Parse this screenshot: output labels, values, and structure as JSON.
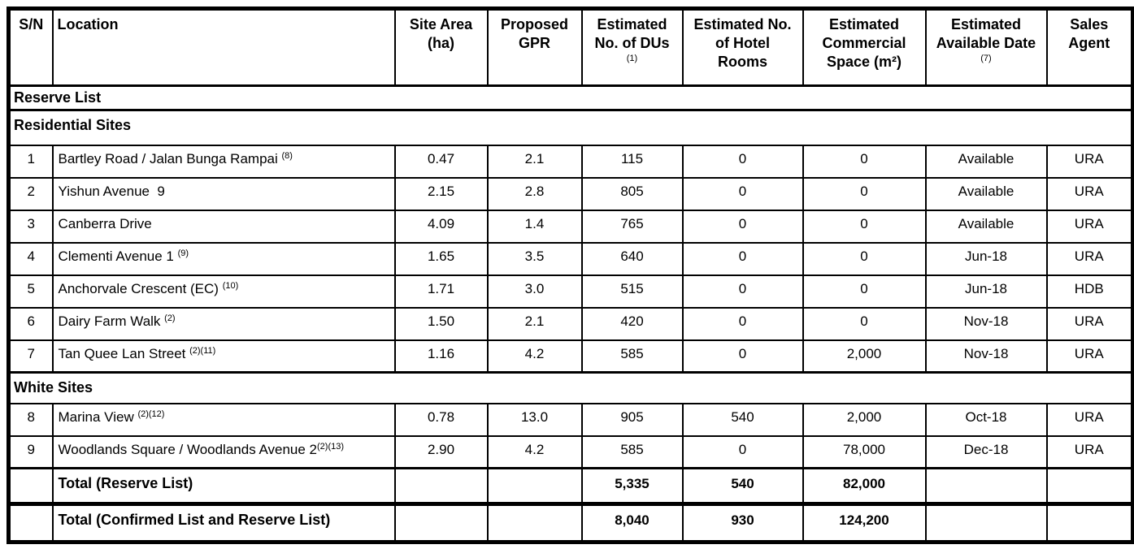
{
  "header": {
    "columns": [
      {
        "id": "sn",
        "label": "S/N",
        "note": ""
      },
      {
        "id": "location",
        "label": "Location",
        "note": ""
      },
      {
        "id": "site-area",
        "label": "Site Area\n(ha)",
        "note": ""
      },
      {
        "id": "gpr",
        "label": "Proposed\nGPR",
        "note": ""
      },
      {
        "id": "dus",
        "label": "Estimated\nNo. of DUs",
        "note": "(1)"
      },
      {
        "id": "hotel-rooms",
        "label": "Estimated No.\nof Hotel\nRooms",
        "note": ""
      },
      {
        "id": "commercial",
        "label": "Estimated\nCommercial\nSpace (m²)",
        "note": ""
      },
      {
        "id": "available-date",
        "label": "Estimated\nAvailable Date",
        "note": "(7)"
      },
      {
        "id": "agent",
        "label": "Sales\nAgent",
        "note": ""
      }
    ]
  },
  "rows": [
    {
      "type": "section",
      "label": "Reserve List"
    },
    {
      "type": "section",
      "label": "Residential Sites"
    },
    {
      "type": "site",
      "sn": "1",
      "location": "Bartley Road / Jalan Bunga Rampai ",
      "note": "(8)",
      "site_area": "0.47",
      "gpr": "2.1",
      "dus": "115",
      "hotel": "0",
      "commercial": "0",
      "date": "Available",
      "agent": "URA"
    },
    {
      "type": "site",
      "sn": "2",
      "location": "Yishun Avenue  9",
      "note": "",
      "site_area": "2.15",
      "gpr": "2.8",
      "dus": "805",
      "hotel": "0",
      "commercial": "0",
      "date": "Available",
      "agent": "URA"
    },
    {
      "type": "site",
      "sn": "3",
      "location": "Canberra Drive",
      "note": "",
      "site_area": "4.09",
      "gpr": "1.4",
      "dus": "765",
      "hotel": "0",
      "commercial": "0",
      "date": "Available",
      "agent": "URA"
    },
    {
      "type": "site",
      "sn": "4",
      "location": "Clementi Avenue 1 ",
      "note": "(9)",
      "site_area": "1.65",
      "gpr": "3.5",
      "dus": "640",
      "hotel": "0",
      "commercial": "0",
      "date": "Jun-18",
      "agent": "URA"
    },
    {
      "type": "site",
      "sn": "5",
      "location": "Anchorvale Crescent (EC) ",
      "note": "(10)",
      "site_area": "1.71",
      "gpr": "3.0",
      "dus": "515",
      "hotel": "0",
      "commercial": "0",
      "date": "Jun-18",
      "agent": "HDB"
    },
    {
      "type": "site",
      "sn": "6",
      "location": "Dairy Farm Walk ",
      "note": "(2)",
      "site_area": "1.50",
      "gpr": "2.1",
      "dus": "420",
      "hotel": "0",
      "commercial": "0",
      "date": "Nov-18",
      "agent": "URA"
    },
    {
      "type": "site",
      "sn": "7",
      "location": "Tan Quee Lan Street ",
      "note": "(2)(11)",
      "site_area": "1.16",
      "gpr": "4.2",
      "dus": "585",
      "hotel": "0",
      "commercial": "2,000",
      "date": "Nov-18",
      "agent": "URA"
    },
    {
      "type": "section",
      "label": "White Sites"
    },
    {
      "type": "site",
      "sn": "8",
      "location": "Marina View ",
      "note": "(2)(12)",
      "site_area": "0.78",
      "gpr": "13.0",
      "dus": "905",
      "hotel": "540",
      "commercial": "2,000",
      "date": "Oct-18",
      "agent": "URA"
    },
    {
      "type": "site",
      "sn": "9",
      "location": "Woodlands Square / Woodlands Avenue 2",
      "note": "(2)(13)",
      "site_area": "2.90",
      "gpr": "4.2",
      "dus": "585",
      "hotel": "0",
      "commercial": "78,000",
      "date": "Dec-18",
      "agent": "URA"
    },
    {
      "type": "total",
      "label": "Total (Reserve List)",
      "dus": "5,335",
      "hotel": "540",
      "commercial": "82,000",
      "thick_top": false
    },
    {
      "type": "total",
      "label": "Total (Confirmed List and Reserve List)",
      "dus": "8,040",
      "hotel": "930",
      "commercial": "124,200",
      "thick_top": true
    }
  ],
  "colors": {
    "border": "#000000",
    "text": "#000000",
    "background": "#ffffff"
  }
}
